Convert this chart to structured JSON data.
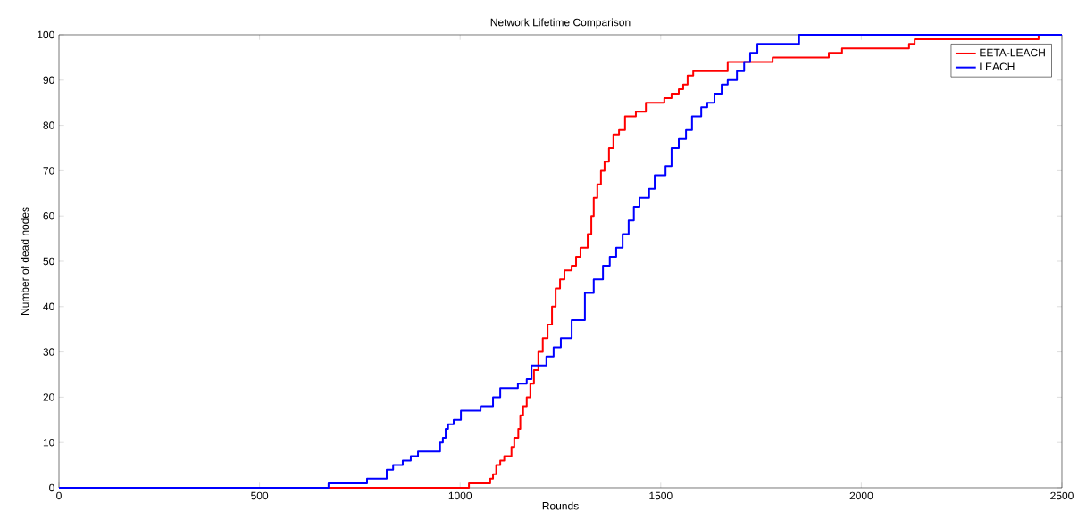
{
  "chart_data": {
    "type": "step",
    "title": "Network Lifetime Comparison",
    "xlabel": "Rounds",
    "ylabel": "Number of dead nodes",
    "xlim": [
      0,
      2500
    ],
    "ylim": [
      0,
      100
    ],
    "xticks": [
      0,
      500,
      1000,
      1500,
      2000,
      2500
    ],
    "yticks": [
      0,
      10,
      20,
      30,
      40,
      50,
      60,
      70,
      80,
      90,
      100
    ],
    "legend": "top right",
    "grid": false,
    "line_style": "solid",
    "marker": "none",
    "series": [
      {
        "name": "EETA-LEACH",
        "color": "#ff0000",
        "x": [
          0,
          1022,
          1075,
          1082,
          1090,
          1100,
          1110,
          1128,
          1135,
          1145,
          1150,
          1157,
          1166,
          1175,
          1184,
          1195,
          1206,
          1218,
          1229,
          1238,
          1249,
          1260,
          1278,
          1289,
          1300,
          1318,
          1327,
          1333,
          1342,
          1351,
          1360,
          1371,
          1382,
          1396,
          1411,
          1438,
          1463,
          1509,
          1527,
          1545,
          1556,
          1567,
          1581,
          1667,
          1779,
          1919,
          1952,
          2119,
          2133,
          2442
        ],
        "values": [
          0,
          1,
          2,
          3,
          5,
          6,
          7,
          9,
          11,
          13,
          16,
          18,
          20,
          23,
          26,
          30,
          33,
          36,
          40,
          44,
          46,
          48,
          49,
          51,
          53,
          56,
          60,
          64,
          67,
          70,
          72,
          75,
          78,
          79,
          82,
          83,
          85,
          86,
          87,
          88,
          89,
          91,
          92,
          94,
          95,
          96,
          97,
          98,
          99,
          100
        ]
      },
      {
        "name": "LEACH",
        "color": "#0000ff",
        "x": [
          0,
          672,
          768,
          817,
          833,
          857,
          877,
          895,
          950,
          957,
          964,
          970,
          984,
          1002,
          1051,
          1082,
          1100,
          1144,
          1166,
          1178,
          1215,
          1233,
          1251,
          1278,
          1311,
          1333,
          1356,
          1373,
          1389,
          1405,
          1420,
          1433,
          1447,
          1471,
          1485,
          1512,
          1527,
          1545,
          1563,
          1578,
          1601,
          1616,
          1634,
          1652,
          1667,
          1690,
          1708,
          1723,
          1741,
          1845,
          2500
        ],
        "values": [
          0,
          1,
          2,
          4,
          5,
          6,
          7,
          8,
          10,
          11,
          13,
          14,
          15,
          17,
          18,
          20,
          22,
          23,
          24,
          27,
          29,
          31,
          33,
          37,
          43,
          46,
          49,
          51,
          53,
          56,
          59,
          62,
          64,
          66,
          69,
          71,
          75,
          77,
          79,
          82,
          84,
          85,
          87,
          89,
          90,
          92,
          94,
          96,
          98,
          100,
          100
        ]
      }
    ]
  }
}
